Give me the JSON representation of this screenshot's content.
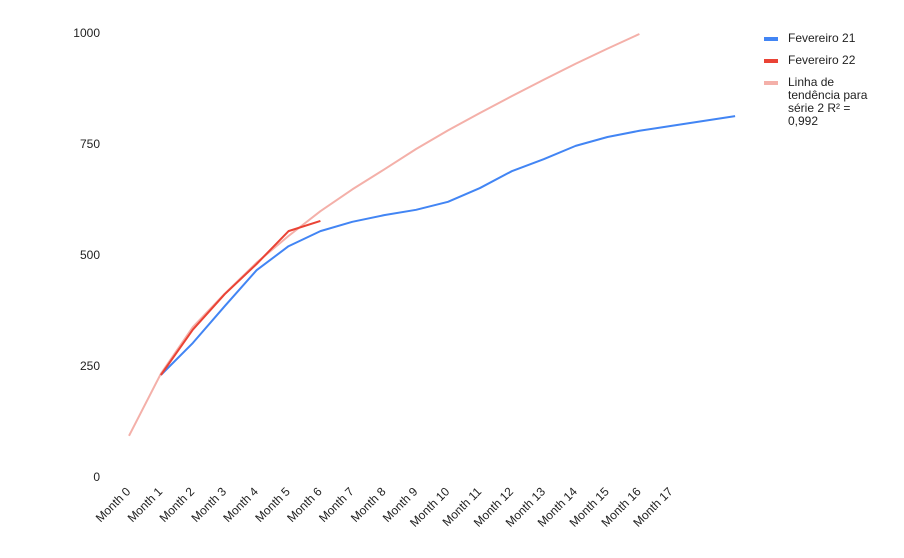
{
  "chart_data": {
    "type": "line",
    "categories": [
      "Month 0",
      "Month 1",
      "Month 2",
      "Month 3",
      "Month 4",
      "Month 5",
      "Month 6",
      "Month 7",
      "Month 8",
      "Month 9",
      "Month 10",
      "Month 11",
      "Month 12",
      "Month 13",
      "Month 14",
      "Month 15",
      "Month 16",
      "Month 17",
      null,
      null
    ],
    "series": [
      {
        "name": "Fevereiro 21",
        "color": "#4285f4",
        "values": [
          null,
          232,
          304,
          387,
          468,
          522,
          556,
          577,
          592,
          604,
          622,
          653,
          691,
          718,
          748,
          768,
          782,
          793,
          804,
          815
        ]
      },
      {
        "name": "Fevereiro 22",
        "color": "#ea4335",
        "values": [
          null,
          232,
          334,
          414,
          482,
          556,
          579,
          null,
          null,
          null,
          null,
          null,
          null,
          null,
          null,
          null,
          null,
          null,
          null,
          null
        ]
      },
      {
        "name": "Linha de tendência para série 2 R² = 0,992",
        "color": "#f4b0a9",
        "values": [
          95,
          235,
          340,
          415,
          485,
          545,
          601,
          650,
          695,
          741,
          783,
          822,
          860,
          897,
          933,
          967,
          1000,
          null,
          null,
          null
        ]
      }
    ],
    "ylim": [
      0,
      1000
    ],
    "yticks": [
      0,
      250,
      500,
      750,
      1000
    ],
    "grid": false,
    "legend": "right"
  }
}
